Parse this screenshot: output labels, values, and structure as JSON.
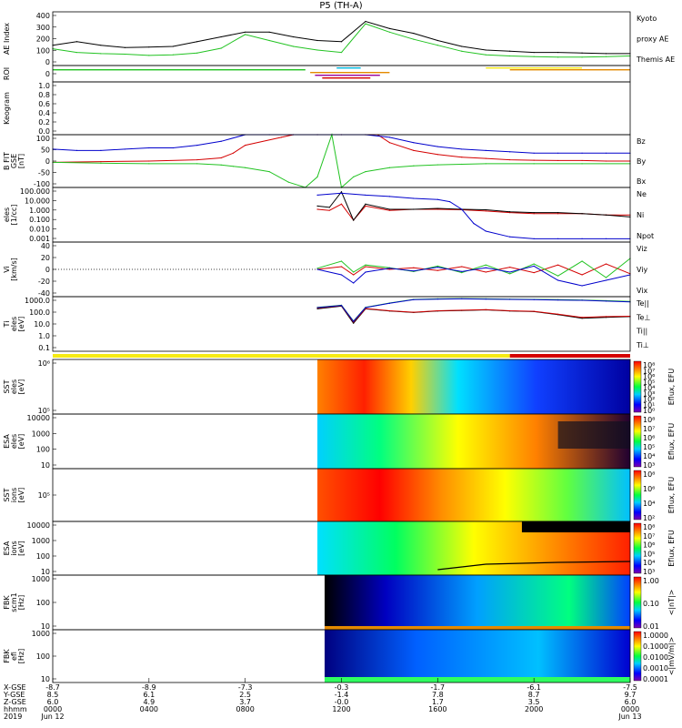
{
  "title": "P5 (TH-A)",
  "colors": {
    "black": "#000000",
    "red": "#d40000",
    "green": "#22c322",
    "blue": "#0000cc",
    "yellow": "#f5ea13",
    "orange": "#e48a00",
    "purple": "#9a009a",
    "cyan": "#00b7e0"
  },
  "chart_data": [
    {
      "id": "ae",
      "type": "line",
      "ylabel": "AE Index",
      "yticks": [
        "400",
        "300",
        "200",
        "100",
        "0"
      ],
      "ylim": [
        -50,
        400
      ],
      "legend_right": [
        "Kyoto",
        "proxy AE",
        "Themis AE"
      ],
      "series": [
        {
          "name": "Kyoto proxy AE",
          "color": "green",
          "x": [
            0,
            1,
            2,
            3,
            4,
            5,
            6,
            7,
            8,
            9,
            10,
            11,
            12,
            13,
            14,
            15,
            16,
            17,
            18,
            19,
            20,
            21,
            22,
            23,
            24
          ],
          "values": [
            90,
            60,
            50,
            45,
            35,
            40,
            55,
            95,
            210,
            160,
            110,
            80,
            60,
            300,
            230,
            170,
            120,
            70,
            40,
            30,
            25,
            20,
            20,
            25,
            30
          ]
        },
        {
          "name": "Themis AE",
          "color": "black",
          "x": [
            0,
            1,
            2,
            3,
            4,
            5,
            6,
            7,
            8,
            9,
            10,
            11,
            12,
            13,
            14,
            15,
            16,
            17,
            18,
            19,
            20,
            21,
            22,
            23,
            24
          ],
          "values": [
            120,
            150,
            120,
            100,
            105,
            110,
            150,
            190,
            230,
            230,
            190,
            160,
            150,
            320,
            260,
            220,
            160,
            110,
            80,
            70,
            60,
            60,
            55,
            50,
            50
          ]
        }
      ]
    },
    {
      "id": "roi",
      "type": "bar",
      "ylabel": "ROI",
      "yticks": [
        "0"
      ]
    },
    {
      "id": "keogram",
      "type": "line",
      "ylabel": "Keogram",
      "yticks": [
        "1.0",
        "0.8",
        "0.6",
        "0.4",
        "0.2",
        "0.0"
      ],
      "ylim": [
        0,
        1
      ]
    },
    {
      "id": "bfield",
      "type": "line",
      "ylabel": "B FIT",
      "ylabel2": "GSE",
      "ylabel3": "[nT]",
      "yticks": [
        "100",
        "50",
        "0",
        "-50",
        "-100"
      ],
      "ylim": [
        -100,
        100
      ],
      "legend_right": [
        "Bz",
        "By",
        "Bx"
      ],
      "series": [
        {
          "name": "Bz",
          "color": "red",
          "x": [
            0,
            2,
            4,
            6,
            7,
            7.5,
            8,
            9.5,
            10,
            11,
            12,
            13,
            13.5,
            14,
            15,
            16,
            17,
            18,
            19,
            20,
            21,
            22,
            23,
            24
          ],
          "values": [
            -5,
            -2,
            0,
            5,
            12,
            30,
            60,
            90,
            100,
            100,
            100,
            100,
            100,
            70,
            40,
            25,
            15,
            10,
            5,
            3,
            2,
            2,
            0,
            0
          ]
        },
        {
          "name": "By",
          "color": "green",
          "x": [
            0,
            2,
            4,
            6,
            7,
            7.5,
            8,
            9,
            9.8,
            10.5,
            11,
            11.6,
            12,
            12.5,
            13,
            14,
            15,
            16,
            17,
            18,
            20,
            22,
            24
          ],
          "values": [
            -5,
            -8,
            -10,
            -10,
            -15,
            -20,
            -25,
            -40,
            -80,
            -100,
            -60,
            100,
            -100,
            -60,
            -40,
            -25,
            -18,
            -14,
            -12,
            -10,
            -10,
            -10,
            -10
          ]
        },
        {
          "name": "Bx",
          "color": "blue",
          "x": [
            0,
            1,
            2,
            3,
            4,
            5,
            6,
            7,
            8,
            9,
            10,
            11,
            12,
            13,
            14,
            15,
            16,
            17,
            18,
            19,
            20,
            21,
            22,
            23,
            24
          ],
          "values": [
            45,
            40,
            40,
            45,
            50,
            50,
            60,
            75,
            100,
            100,
            100,
            100,
            100,
            100,
            90,
            70,
            55,
            45,
            40,
            35,
            30,
            30,
            30,
            30,
            30
          ]
        }
      ]
    },
    {
      "id": "density",
      "type": "line",
      "ylabel": "eles",
      "ylabel2": "[1/cc]",
      "yticks": [
        "100.000",
        "10.000",
        "1.000",
        "0.100",
        "0.010",
        "0.001"
      ],
      "ylim": [
        0.001,
        100
      ],
      "log": true,
      "legend_right": [
        "Ne",
        "Ni",
        "Npot"
      ],
      "series": [
        {
          "name": "Ne",
          "color": "red",
          "x": [
            11,
            11.5,
            12,
            12.5,
            13,
            14,
            15,
            16,
            17,
            18,
            19,
            20,
            21,
            22,
            23,
            24
          ],
          "values": [
            1,
            0.8,
            3,
            0.1,
            2,
            0.8,
            1,
            1,
            0.9,
            0.7,
            0.5,
            0.4,
            0.4,
            0.4,
            0.3,
            0.3
          ]
        },
        {
          "name": "Ni",
          "color": "black",
          "x": [
            11,
            11.5,
            12,
            12.5,
            13,
            14,
            15,
            16,
            17,
            18,
            19,
            20,
            21,
            22,
            23,
            24
          ],
          "values": [
            2,
            1.5,
            40,
            0.1,
            3,
            1,
            1,
            1.2,
            1,
            0.9,
            0.6,
            0.5,
            0.5,
            0.4,
            0.3,
            0.2
          ]
        },
        {
          "name": "Npot",
          "color": "blue",
          "x": [
            11,
            12,
            13,
            14,
            15,
            16,
            16.5,
            17,
            17.5,
            18,
            19,
            20,
            21,
            22,
            23,
            24
          ],
          "values": [
            20,
            30,
            20,
            15,
            10,
            8,
            5,
            1,
            0.05,
            0.01,
            0.003,
            0.002,
            0.002,
            0.002,
            0.002,
            0.002
          ]
        }
      ]
    },
    {
      "id": "velocity",
      "type": "line",
      "ylabel": "Vi",
      "ylabel2": "[km/s]",
      "yticks": [
        "40",
        "20",
        "0",
        "-20",
        "-40"
      ],
      "ylim": [
        -50,
        50
      ],
      "legend_right": [
        "Viz",
        "Viy",
        "Vix"
      ],
      "series": [
        {
          "name": "Viz",
          "color": "red",
          "x": [
            11,
            12,
            12.5,
            13,
            14,
            15,
            16,
            17,
            18,
            19,
            20,
            21,
            22,
            23,
            24
          ],
          "values": [
            0,
            5,
            -10,
            5,
            0,
            3,
            -2,
            5,
            -5,
            4,
            -6,
            8,
            -10,
            10,
            -8
          ]
        },
        {
          "name": "Viy",
          "color": "green",
          "x": [
            11,
            12,
            12.5,
            13,
            14,
            15,
            16,
            17,
            18,
            19,
            20,
            21,
            22,
            23,
            24
          ],
          "values": [
            2,
            15,
            -5,
            8,
            3,
            -4,
            6,
            -6,
            8,
            -8,
            10,
            -12,
            15,
            -15,
            20
          ]
        },
        {
          "name": "Vix",
          "color": "blue",
          "x": [
            11,
            12,
            12.5,
            13,
            14,
            15,
            16,
            17,
            18,
            19,
            20,
            21,
            22,
            23,
            24
          ],
          "values": [
            0,
            -10,
            -25,
            -5,
            2,
            -3,
            4,
            -4,
            3,
            -5,
            6,
            -20,
            -30,
            -20,
            -10
          ]
        }
      ]
    },
    {
      "id": "temperature",
      "type": "line",
      "ylabel": "Ti",
      "ylabel2": "eles",
      "ylabel3": "[eV]",
      "yticks": [
        "1000.0",
        "100.0",
        "10.0",
        "1.0",
        "0.1"
      ],
      "ylim": [
        0.1,
        3000
      ],
      "log": true,
      "legend_right": [
        "Te||",
        "Te⊥",
        "Ti||",
        "Ti⊥"
      ],
      "series": [
        {
          "name": "Te||",
          "color": "black",
          "x": [
            11,
            12,
            12.5,
            13,
            14,
            15,
            16,
            17,
            18,
            19,
            20,
            21,
            22,
            23,
            24
          ],
          "values": [
            300,
            500,
            20,
            300,
            200,
            150,
            200,
            220,
            250,
            200,
            180,
            100,
            50,
            60,
            70
          ]
        },
        {
          "name": "Te⊥",
          "color": "red",
          "x": [
            11,
            12,
            12.5,
            13,
            14,
            15,
            16,
            17,
            18,
            19,
            20,
            21,
            22,
            23,
            24
          ],
          "values": [
            350,
            550,
            25,
            320,
            210,
            160,
            210,
            230,
            260,
            210,
            190,
            110,
            60,
            70,
            75
          ]
        },
        {
          "name": "Ti||",
          "color": "green",
          "x": [
            11,
            12,
            12.5,
            13,
            14,
            15,
            16,
            17,
            18,
            19,
            20,
            21,
            22,
            23,
            24
          ],
          "values": [
            400,
            600,
            30,
            400,
            900,
            1800,
            2000,
            2100,
            2000,
            1900,
            1800,
            1700,
            1600,
            1400,
            1200
          ]
        },
        {
          "name": "Ti⊥",
          "color": "blue",
          "x": [
            11,
            12,
            12.5,
            13,
            14,
            15,
            16,
            17,
            18,
            19,
            20,
            21,
            22,
            23,
            24
          ],
          "values": [
            380,
            580,
            28,
            380,
            850,
            1700,
            1900,
            2000,
            1900,
            1800,
            1700,
            1600,
            1500,
            1300,
            1100
          ]
        }
      ]
    },
    {
      "id": "region_bar",
      "type": "bar"
    },
    {
      "id": "sst_e",
      "type": "heatmap",
      "ylabel": "SST",
      "ylabel2": "eles",
      "ylabel3": "[eV]",
      "yticks": [
        "10^6",
        "10^5"
      ],
      "colorbar_label": "Eflux, EFU",
      "colorbar_ticks": [
        "10^8",
        "10^7",
        "10^6",
        "10^5",
        "10^4",
        "10^3",
        "10^2",
        "10^1",
        "10^0"
      ]
    },
    {
      "id": "esa_e",
      "type": "heatmap",
      "ylabel": "ESA",
      "ylabel2": "eles",
      "ylabel3": "[eV]",
      "yticks": [
        "10000",
        "1000",
        "100",
        "10"
      ],
      "colorbar_label": "Eflux, EFU",
      "colorbar_ticks": [
        "10^8",
        "10^7",
        "10^6",
        "10^5",
        "10^4",
        "10^3"
      ]
    },
    {
      "id": "sst_i",
      "type": "heatmap",
      "ylabel": "SST",
      "ylabel2": "ions",
      "ylabel3": "[eV]",
      "yticks": [
        "10^5"
      ],
      "colorbar_label": "Eflux, EFU",
      "colorbar_ticks": [
        "10^8",
        "10^6",
        "10^4",
        "10^2"
      ]
    },
    {
      "id": "esa_i",
      "type": "heatmap",
      "ylabel": "ESA",
      "ylabel2": "ions",
      "ylabel3": "[eV]",
      "yticks": [
        "10000",
        "1000",
        "100",
        "10"
      ],
      "colorbar_label": "Eflux, EFU",
      "colorbar_ticks": [
        "10^8",
        "10^7",
        "10^6",
        "10^5",
        "10^4",
        "10^3"
      ]
    },
    {
      "id": "fbk_b",
      "type": "heatmap",
      "ylabel": "FBK",
      "ylabel2": "scm1",
      "ylabel3": "[Hz]",
      "yticks": [
        "1000",
        "100",
        "10"
      ],
      "colorbar_label": "<|nT|>",
      "colorbar_ticks": [
        "1.00",
        "0.10",
        "0.01"
      ]
    },
    {
      "id": "fbk_e",
      "type": "heatmap",
      "ylabel": "FBK",
      "ylabel2": "efi",
      "ylabel3": "[Hz]",
      "yticks": [
        "1000",
        "100",
        "10"
      ],
      "colorbar_label": "<|mV/m|>",
      "colorbar_ticks": [
        "1.0000",
        "0.1000",
        "0.0100",
        "0.0010",
        "0.0001"
      ]
    }
  ],
  "time_axis": {
    "row_labels": [
      "X-GSE",
      "Y-GSE",
      "Z-GSE",
      "hhmm",
      "2019"
    ],
    "columns": [
      {
        "x": 0,
        "v": [
          "-8.7",
          "8.5",
          "6.0",
          "0000",
          "Jun 12"
        ]
      },
      {
        "x": 4,
        "v": [
          "-8.9",
          "6.1",
          "4.9",
          "0400",
          ""
        ]
      },
      {
        "x": 8,
        "v": [
          "-7.3",
          "2.5",
          "3.7",
          "0800",
          ""
        ]
      },
      {
        "x": 12,
        "v": [
          "-0.3",
          "-1.4",
          "-0.0",
          "1200",
          ""
        ]
      },
      {
        "x": 16,
        "v": [
          "-1.7",
          "7.8",
          "1.7",
          "1600",
          ""
        ]
      },
      {
        "x": 20,
        "v": [
          "-6.1",
          "8.7",
          "3.5",
          "2000",
          ""
        ]
      },
      {
        "x": 24,
        "v": [
          "-7.5",
          "9.7",
          "6.0",
          "0000",
          "Jun 13"
        ]
      }
    ]
  }
}
